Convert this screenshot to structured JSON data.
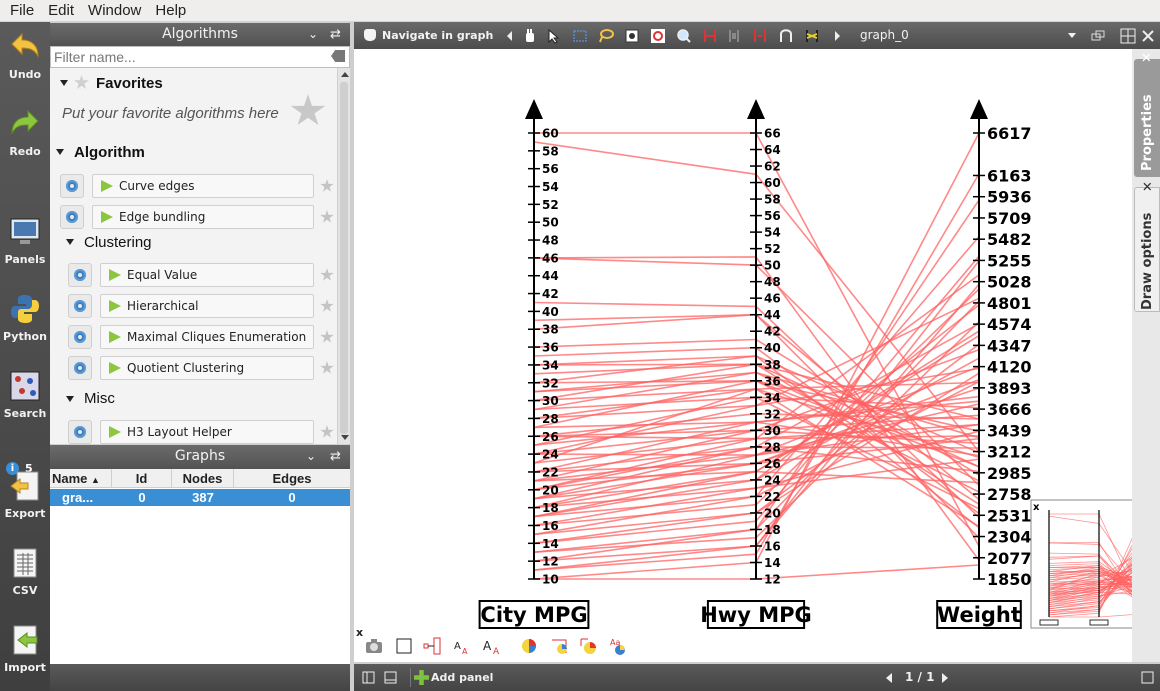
{
  "menubar": {
    "items": [
      {
        "label": "File"
      },
      {
        "label": "Edit"
      },
      {
        "label": "Window"
      },
      {
        "label": "Help"
      }
    ]
  },
  "left_toolbar": {
    "undo": "Undo",
    "redo": "Redo",
    "panels": "Panels",
    "python": "Python",
    "search": "Search",
    "plugin_count": "5",
    "export": "Export",
    "csv": "CSV",
    "import": "Import"
  },
  "algorithms_panel": {
    "title": "Algorithms",
    "filter_placeholder": "Filter name...",
    "favorites_title": "Favorites",
    "favorites_hint": "Put your favorite algorithms here",
    "algorithm_group": "Algorithm",
    "algorithm_items": [
      "Curve edges",
      "Edge bundling"
    ],
    "clustering_group": "Clustering",
    "clustering_items": [
      "Equal Value",
      "Hierarchical",
      "Maximal Cliques Enumeration",
      "Quotient Clustering"
    ],
    "misc_group": "Misc",
    "misc_items": [
      "H3 Layout Helper"
    ]
  },
  "graphs_panel": {
    "title": "Graphs",
    "columns": [
      "Name",
      "Id",
      "Nodes",
      "Edges"
    ],
    "rows": [
      {
        "name": "gra...",
        "id": "0",
        "nodes": "387",
        "edges": "0"
      }
    ]
  },
  "view_toolbar": {
    "interactor": "Navigate in graph",
    "graph_name": "graph_0"
  },
  "status_bar": {
    "add_panel": "Add panel",
    "page": "1 / 1"
  },
  "side_tabs": {
    "properties": "Properties",
    "draw_options": "Draw options"
  },
  "colors": {
    "line": "#ff6262",
    "selection": "#3a8fd4"
  },
  "chart_data": {
    "type": "parallel-coordinates",
    "axes": [
      {
        "label": "City MPG",
        "min": 10,
        "max": 60,
        "ticks": [
          10,
          12,
          14,
          16,
          18,
          20,
          22,
          24,
          26,
          28,
          30,
          32,
          34,
          36,
          38,
          40,
          42,
          44,
          46,
          48,
          50,
          52,
          54,
          56,
          58,
          60
        ]
      },
      {
        "label": "Hwy MPG",
        "min": 12,
        "max": 66,
        "ticks": [
          12,
          14,
          16,
          18,
          20,
          22,
          24,
          26,
          28,
          30,
          32,
          34,
          36,
          38,
          40,
          42,
          44,
          46,
          48,
          50,
          52,
          54,
          56,
          58,
          60,
          62,
          64,
          66
        ]
      },
      {
        "label": "Weight",
        "min": 1850,
        "max": 6617,
        "ticks": [
          1850,
          2077,
          2304,
          2531,
          2758,
          2985,
          3212,
          3439,
          3666,
          3893,
          4120,
          4347,
          4574,
          4801,
          5028,
          5255,
          5482,
          5709,
          5936,
          6163,
          6617
        ]
      }
    ],
    "records": [
      [
        60,
        66,
        2200
      ],
      [
        59,
        61,
        3210
      ],
      [
        46,
        51,
        2050
      ],
      [
        46,
        50,
        2850
      ],
      [
        41,
        45,
        2510
      ],
      [
        39,
        44,
        2290
      ],
      [
        38,
        44,
        2700
      ],
      [
        36,
        41,
        2960
      ],
      [
        34,
        39,
        3200
      ],
      [
        33,
        38,
        3560
      ],
      [
        32,
        36,
        3050
      ],
      [
        31,
        37,
        3360
      ],
      [
        30,
        35,
        3950
      ],
      [
        29,
        34,
        3680
      ],
      [
        28,
        33,
        4100
      ],
      [
        27,
        36,
        3430
      ],
      [
        26,
        32,
        3560
      ],
      [
        26,
        30,
        4300
      ],
      [
        25,
        31,
        3800
      ],
      [
        24,
        30,
        3300
      ],
      [
        24,
        33,
        4850
      ],
      [
        23,
        29,
        3500
      ],
      [
        22,
        28,
        4580
      ],
      [
        22,
        31,
        3170
      ],
      [
        21,
        27,
        4120
      ],
      [
        21,
        30,
        3600
      ],
      [
        20,
        26,
        3350
      ],
      [
        20,
        29,
        5100
      ],
      [
        19,
        26,
        3890
      ],
      [
        19,
        24,
        4780
      ],
      [
        18,
        25,
        4500
      ],
      [
        18,
        27,
        3720
      ],
      [
        17,
        24,
        4210
      ],
      [
        17,
        22,
        5510
      ],
      [
        16,
        23,
        3430
      ],
      [
        16,
        21,
        4950
      ],
      [
        15,
        20,
        4360
      ],
      [
        15,
        22,
        3960
      ],
      [
        14,
        19,
        5300
      ],
      [
        14,
        20,
        4050
      ],
      [
        13,
        18,
        5900
      ],
      [
        13,
        17,
        4600
      ],
      [
        12,
        16,
        5250
      ],
      [
        12,
        18,
        4820
      ],
      [
        11,
        15,
        6180
      ],
      [
        11,
        16,
        5000
      ],
      [
        10,
        14,
        6617
      ],
      [
        10,
        12,
        2000
      ],
      [
        23,
        35,
        2410
      ],
      [
        25,
        34,
        2600
      ],
      [
        27,
        31,
        3750
      ],
      [
        28,
        35,
        3150
      ],
      [
        29,
        37,
        2900
      ],
      [
        30,
        38,
        2650
      ],
      [
        31,
        36,
        2780
      ],
      [
        32,
        39,
        2400
      ],
      [
        34,
        38,
        3050
      ],
      [
        35,
        40,
        2550
      ],
      [
        20,
        28,
        3250
      ],
      [
        19,
        28,
        3000
      ],
      [
        18,
        23,
        3130
      ],
      [
        17,
        25,
        2880
      ],
      [
        22,
        26,
        3980
      ],
      [
        21,
        25,
        4450
      ],
      [
        24,
        27,
        3500
      ],
      [
        26,
        29,
        3380
      ]
    ],
    "minimap": {
      "labels": [
        "City MPG",
        "Hwy MPG",
        "Weight"
      ]
    }
  }
}
